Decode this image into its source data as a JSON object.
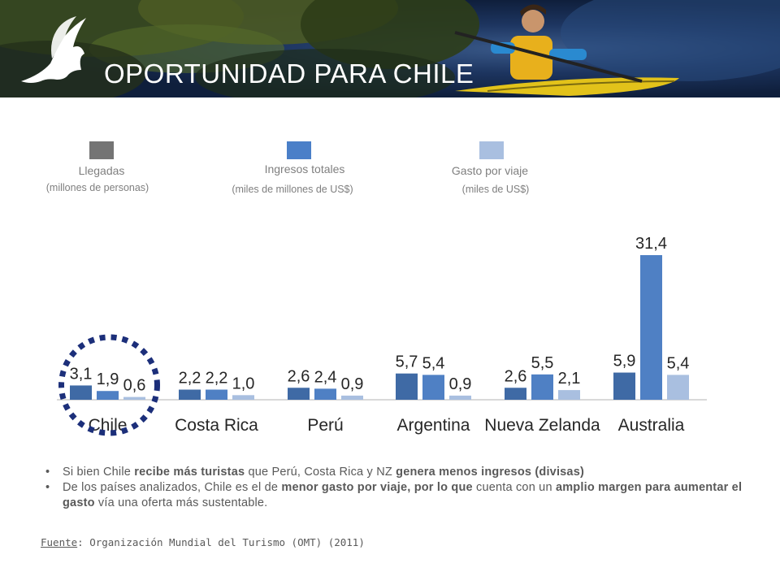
{
  "header": {
    "title": "OPORTUNIDAD PARA CHILE"
  },
  "legend": [
    {
      "label": "Llegadas",
      "unit": "(millones de personas)",
      "color": "#747474"
    },
    {
      "label": "Ingresos  totales",
      "unit": "(miles de millones de US$)",
      "color": "#4a7fc8"
    },
    {
      "label": "Gasto por  viaje",
      "unit": "(miles de US$)",
      "color": "#a9bfe0"
    }
  ],
  "chart_data": {
    "type": "bar",
    "categories": [
      "Chile",
      "Costa Rica",
      "Perú",
      "Argentina",
      "Nueva Zelanda",
      "Australia"
    ],
    "series": [
      {
        "name": "Llegadas",
        "values": [
          3.1,
          2.2,
          2.6,
          5.7,
          2.6,
          5.9
        ],
        "labels": [
          "3,1",
          "2,2",
          "2,6",
          "5,7",
          "2,6",
          "5,9"
        ],
        "color": "#3f6aa5"
      },
      {
        "name": "Ingresos  totales",
        "values": [
          1.9,
          2.2,
          2.4,
          5.4,
          5.5,
          31.4
        ],
        "labels": [
          "1,9",
          "2,2",
          "2,4",
          "5,4",
          "5,5",
          "31,4"
        ],
        "color": "#4f80c4"
      },
      {
        "name": "Gasto por  viaje",
        "values": [
          0.6,
          1.0,
          0.9,
          0.9,
          2.1,
          5.4
        ],
        "labels": [
          "0,6",
          "1,0",
          "0,9",
          "0,9",
          "2,1",
          "5,4"
        ],
        "color": "#a9bfe0"
      }
    ],
    "highlight": "Chile",
    "ylim": [
      0,
      31.4
    ]
  },
  "bullets": [
    {
      "parts": [
        {
          "text": "Si bien Chile ",
          "bold": false
        },
        {
          "text": "recibe más turistas",
          "bold": true
        },
        {
          "text": " que Perú, Costa Rica y NZ ",
          "bold": false
        },
        {
          "text": "genera menos ingresos (divisas)",
          "bold": true
        }
      ]
    },
    {
      "parts": [
        {
          "text": "De los países analizados, Chile es el de ",
          "bold": false
        },
        {
          "text": "menor gasto por viaje, por lo que",
          "bold": true
        },
        {
          "text": " cuenta con un ",
          "bold": false
        },
        {
          "text": "amplio margen para aumentar el gasto",
          "bold": true
        },
        {
          "text": " vía una oferta más sustentable.",
          "bold": false
        }
      ]
    }
  ],
  "source": {
    "link": "Fuente",
    "text": ": Organización  Mundial  del Turismo (OMT) (2011)"
  }
}
